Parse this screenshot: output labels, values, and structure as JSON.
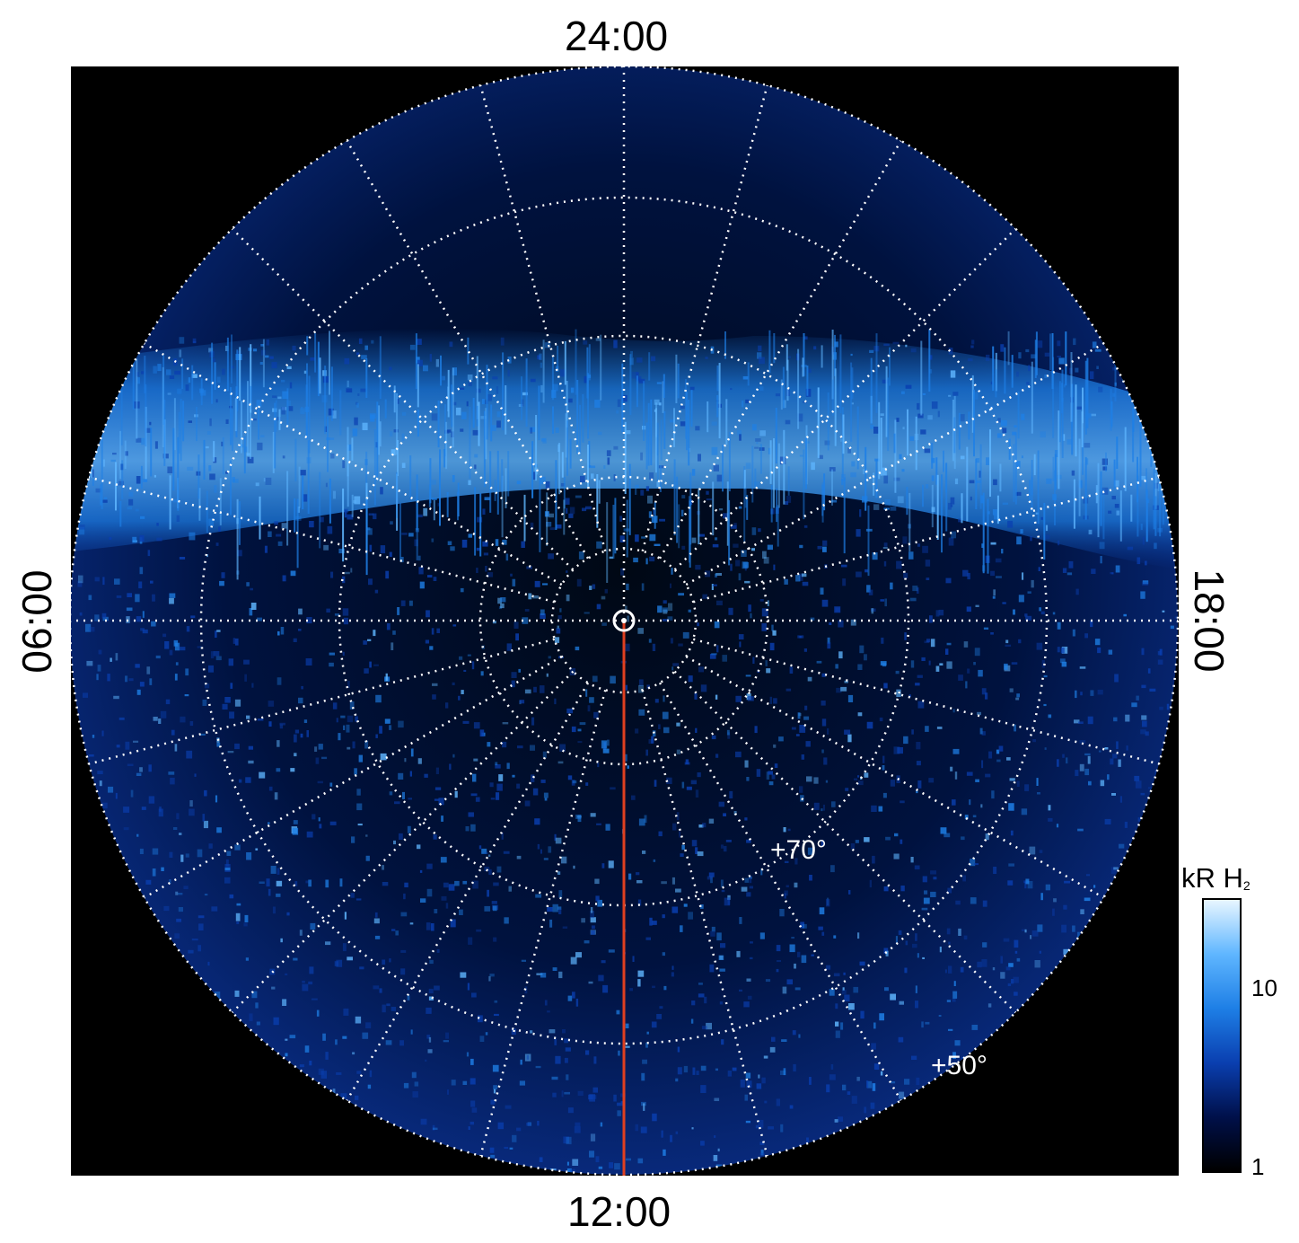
{
  "axes": {
    "top": "24:00",
    "bottom": "12:00",
    "left": "06:00",
    "right": "18:00"
  },
  "latitude_labels": {
    "inner": "+70°",
    "outer": "+50°"
  },
  "colorbar": {
    "title_main": "kR H",
    "title_sub": "2",
    "ticks": [
      "10",
      "1"
    ],
    "scale": "log",
    "colors": [
      "#000000",
      "#00104a",
      "#0a3fb0",
      "#1e7fe6",
      "#5fb6ff",
      "#e8f6ff"
    ]
  },
  "grid": {
    "style": "dotted",
    "color": "#ffffff",
    "meridian_count": 24
  },
  "meridian_line_color": "#e04020",
  "background": "#000000"
}
